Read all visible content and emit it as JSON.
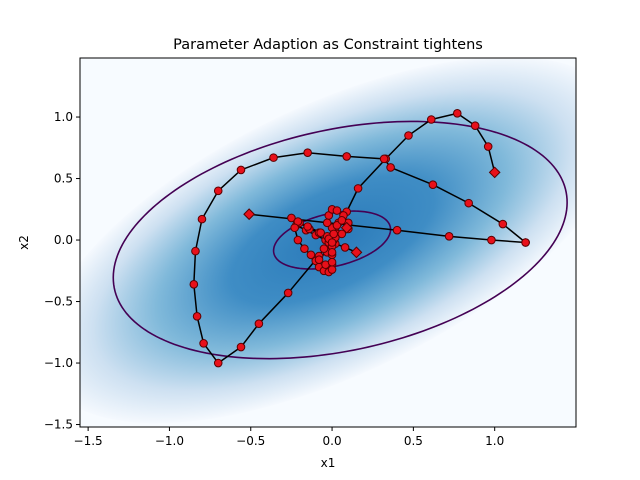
{
  "chart_data": {
    "type": "scatter",
    "title": "Parameter Adaption as Constraint tightens",
    "xlabel": "x1",
    "ylabel": "x2",
    "xlim": [
      -1.55,
      1.5
    ],
    "ylim": [
      -1.52,
      1.48
    ],
    "xticks": [
      -1.5,
      -1.0,
      -0.5,
      0.0,
      0.5,
      1.0
    ],
    "yticks": [
      -1.5,
      -1.0,
      -0.5,
      0.0,
      0.5,
      1.0
    ],
    "xtick_labels": [
      "−1.5",
      "−1.0",
      "−0.5",
      "0.0",
      "0.5",
      "1.0"
    ],
    "ytick_labels": [
      "−1.5",
      "−1.0",
      "−0.5",
      "0.0",
      "0.5",
      "1.0"
    ],
    "grid": false,
    "legend": "none",
    "colors": {
      "background_fill": "#3585c0",
      "contour": "#440154",
      "path": "#000000",
      "marker_fill": "#e8101a",
      "marker_edge": "#5a0000"
    },
    "background_density": {
      "type": "gaussian",
      "center": [
        0.0,
        0.0
      ],
      "covariance": [
        [
          0.55,
          0.17
        ],
        [
          0.17,
          0.28
        ]
      ]
    },
    "contours": [
      {
        "center": [
          0.05,
          0.0
        ],
        "semi_major": 1.45,
        "semi_minor": 0.88,
        "angle_deg": 20
      },
      {
        "center": [
          0.0,
          0.0
        ],
        "semi_major": 0.375,
        "semi_minor": 0.21,
        "angle_deg": 20
      }
    ],
    "trajectories": [
      {
        "start_marker": "diamond",
        "end_marker": "diamond",
        "points": [
          [
            -0.51,
            0.21
          ],
          [
            0.4,
            0.08
          ],
          [
            0.72,
            0.03
          ],
          [
            0.98,
            0.0
          ],
          [
            1.19,
            -0.02
          ]
        ]
      },
      {
        "start_marker": "diamond",
        "end_marker": "diamond",
        "points": [
          [
            1.0,
            0.55
          ],
          [
            0.96,
            0.76
          ],
          [
            0.88,
            0.93
          ],
          [
            0.77,
            1.03
          ],
          [
            0.61,
            0.98
          ],
          [
            0.47,
            0.85
          ],
          [
            0.33,
            0.66
          ],
          [
            0.16,
            0.42
          ],
          [
            0.09,
            0.23
          ],
          [
            0.04,
            0.14
          ],
          [
            0.02,
            0.07
          ],
          [
            0.0,
            0.02
          ],
          [
            -0.01,
            -0.04
          ],
          [
            -0.03,
            -0.1
          ],
          [
            -0.1,
            -0.16
          ],
          [
            -0.27,
            -0.43
          ],
          [
            -0.45,
            -0.68
          ],
          [
            -0.56,
            -0.87
          ],
          [
            -0.7,
            -1.0
          ],
          [
            -0.79,
            -0.84
          ],
          [
            -0.83,
            -0.62
          ],
          [
            -0.85,
            -0.36
          ],
          [
            -0.84,
            -0.09
          ],
          [
            -0.8,
            0.17
          ],
          [
            -0.7,
            0.4
          ],
          [
            -0.56,
            0.57
          ],
          [
            -0.36,
            0.67
          ],
          [
            -0.15,
            0.71
          ],
          [
            0.09,
            0.68
          ],
          [
            0.32,
            0.66
          ],
          [
            0.36,
            0.59
          ],
          [
            0.62,
            0.45
          ],
          [
            0.84,
            0.3
          ],
          [
            1.05,
            0.13
          ],
          [
            1.19,
            -0.02
          ]
        ]
      },
      {
        "start_marker": "diamond",
        "end_marker": "diamond",
        "points": [
          [
            0.15,
            -0.1
          ],
          [
            0.08,
            -0.06
          ],
          [
            0.02,
            -0.03
          ],
          [
            -0.04,
            0.0
          ],
          [
            -0.1,
            0.04
          ],
          [
            -0.16,
            0.08
          ],
          [
            -0.22,
            0.12
          ],
          [
            -0.25,
            0.18
          ],
          [
            -0.2,
            0.14
          ],
          [
            -0.14,
            0.09
          ],
          [
            -0.08,
            0.06
          ],
          [
            -0.03,
            0.03
          ],
          [
            0.01,
            0.0
          ],
          [
            0.03,
            0.05
          ],
          [
            0.0,
            0.1
          ],
          [
            -0.03,
            0.14
          ],
          [
            -0.02,
            0.2
          ],
          [
            0.0,
            0.25
          ],
          [
            0.03,
            0.24
          ],
          [
            0.07,
            0.2
          ],
          [
            0.1,
            0.14
          ],
          [
            0.1,
            0.09
          ],
          [
            0.06,
            0.05
          ],
          [
            0.02,
            0.02
          ],
          [
            -0.02,
            -0.02
          ],
          [
            -0.05,
            -0.07
          ],
          [
            -0.08,
            -0.13
          ],
          [
            -0.1,
            -0.17
          ],
          [
            -0.08,
            -0.22
          ],
          [
            -0.05,
            -0.25
          ],
          [
            -0.02,
            -0.26
          ],
          [
            0.0,
            -0.2
          ],
          [
            0.0,
            -0.12
          ],
          [
            0.0,
            -0.05
          ],
          [
            -0.02,
            0.01
          ],
          [
            -0.07,
            0.06
          ],
          [
            -0.15,
            0.11
          ],
          [
            -0.21,
            0.15
          ],
          [
            -0.23,
            0.1
          ],
          [
            -0.21,
            0.0
          ],
          [
            -0.17,
            -0.07
          ],
          [
            -0.13,
            -0.12
          ],
          [
            -0.08,
            -0.16
          ],
          [
            -0.04,
            -0.2
          ],
          [
            0.0,
            -0.24
          ],
          [
            0.0,
            -0.18
          ],
          [
            0.0,
            -0.1
          ],
          [
            0.0,
            -0.02
          ],
          [
            0.01,
            0.05
          ],
          [
            0.03,
            0.12
          ],
          [
            0.06,
            0.16
          ],
          [
            0.09,
            0.1
          ]
        ]
      }
    ]
  }
}
